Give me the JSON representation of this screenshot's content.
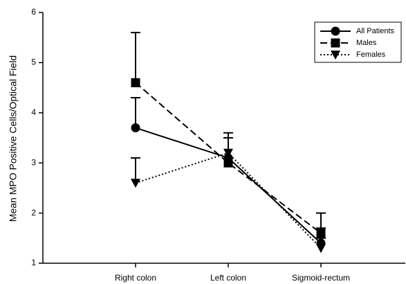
{
  "chart_data": {
    "type": "line",
    "y_label": "Mean MPO Positive Cells/Optical Field",
    "categories": [
      "Right colon",
      "Left colon",
      "Sigmoid-rectum"
    ],
    "series": [
      {
        "name": "All Patients",
        "color": "#000000",
        "marker": "circle",
        "dash": "solid",
        "values": [
          3.7,
          3.1,
          1.4
        ],
        "errors": [
          0.6,
          0.4,
          0.3
        ]
      },
      {
        "name": "Males",
        "color": "#000000",
        "marker": "square",
        "dash": "dashed",
        "values": [
          4.6,
          3.0,
          1.6
        ],
        "errors": [
          1.0,
          0.5,
          0.4
        ]
      },
      {
        "name": "Females",
        "color": "#000000",
        "marker": "triangle-down",
        "dash": "dotted",
        "values": [
          2.6,
          3.2,
          1.3
        ],
        "errors": [
          0.5,
          0.4,
          0.2
        ]
      }
    ],
    "ylim": [
      1,
      6
    ],
    "yticks": [
      1,
      2,
      3,
      4,
      5,
      6
    ],
    "legend": "upper right"
  }
}
